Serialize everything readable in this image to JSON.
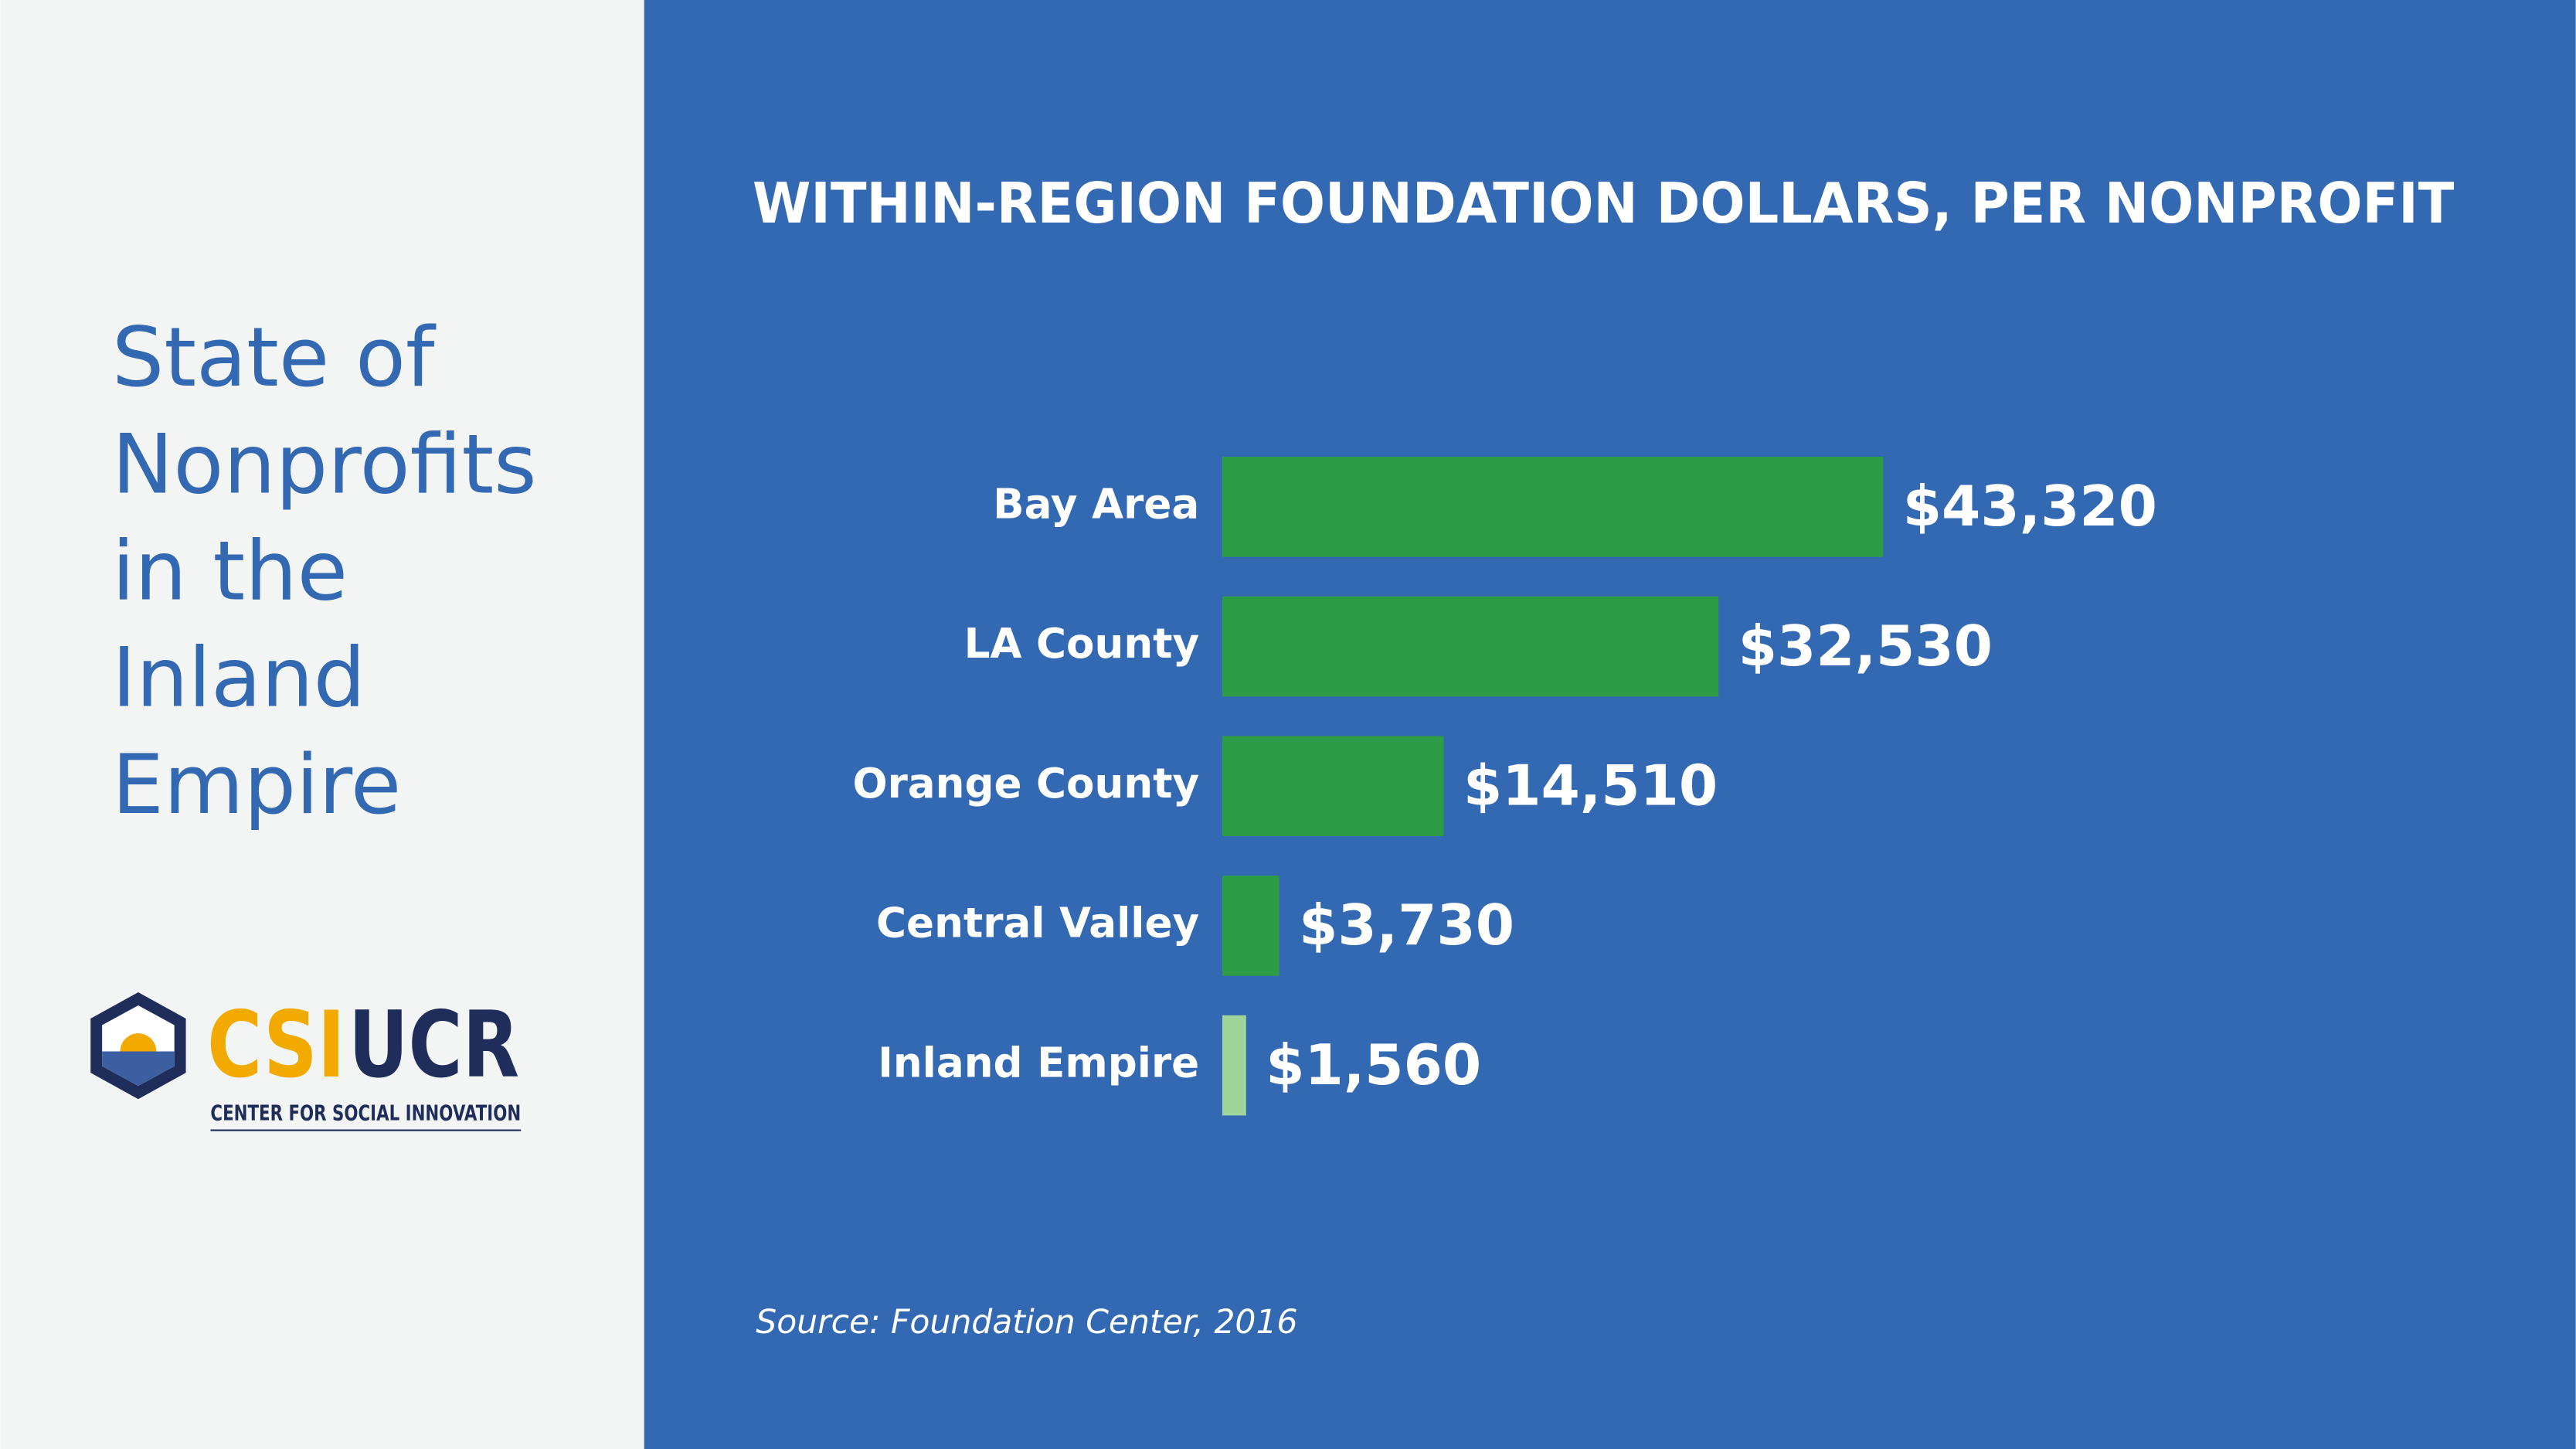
{
  "sidebar": {
    "title_lines": [
      "State of",
      "Nonprofits",
      "in the",
      "Inland",
      "Empire"
    ],
    "logo": {
      "part1": "CSI",
      "part2": "UCR",
      "tagline": "CENTER FOR SOCIAL INNOVATION"
    }
  },
  "chart_data": {
    "type": "hbar",
    "title": "WITHIN-REGION FOUNDATION DOLLARS, PER NONPROFIT",
    "categories": [
      "Bay Area",
      "LA County",
      "Orange County",
      "Central Valley",
      "Inland Empire"
    ],
    "values": [
      43320,
      32530,
      14510,
      3730,
      1560
    ],
    "value_labels": [
      "$43,320",
      "$32,530",
      "$14,510",
      "$3,730",
      "$1,560"
    ],
    "colors": [
      "#2e9b47",
      "#2e9b47",
      "#2e9b47",
      "#2e9b47",
      "#9fd49b"
    ],
    "xlim": [
      0,
      80000
    ],
    "source": "Source: Foundation Center, 2016"
  }
}
